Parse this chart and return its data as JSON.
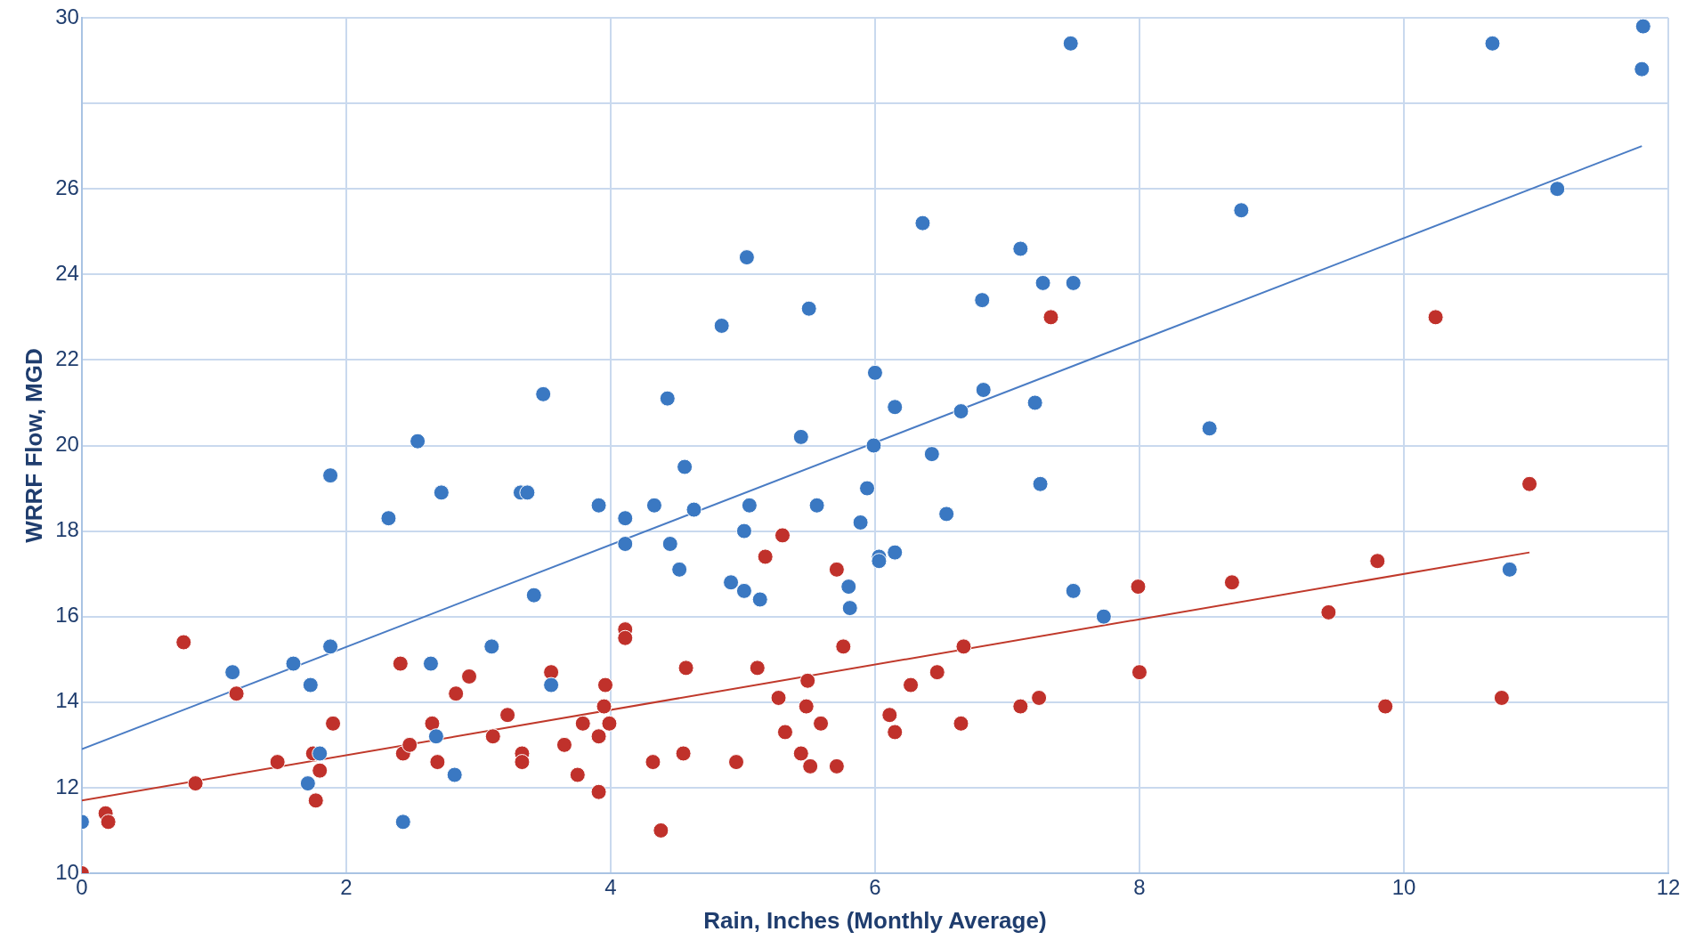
{
  "chart_data": {
    "type": "scatter",
    "xlabel": "Rain, Inches (Monthly Average)",
    "ylabel": "WRRF Flow, MGD",
    "xlim": [
      0,
      12
    ],
    "ylim": [
      10,
      30
    ],
    "xticks": [
      0,
      2,
      4,
      6,
      8,
      10,
      12
    ],
    "yticks": [
      10,
      12,
      14,
      16,
      18,
      20,
      22,
      24,
      26,
      {
        "value": 28,
        "label": null
      },
      30
    ],
    "grid": true,
    "marker": "circle",
    "series": [
      {
        "color": "#3a78c2",
        "x": [
          0,
          1.14,
          1.6,
          1.73,
          1.71,
          1.8,
          1.88,
          1.88,
          2.32,
          2.54,
          2.43,
          2.64,
          2.68,
          2.72,
          2.82,
          3.1,
          3.32,
          3.37,
          3.42,
          3.49,
          3.55,
          3.91,
          4.11,
          4.11,
          4.33,
          4.43,
          4.45,
          4.52,
          4.56,
          4.63,
          4.84,
          4.91,
          5.01,
          5.01,
          5.03,
          5.05,
          5.13,
          5.44,
          5.5,
          5.56,
          5.8,
          5.81,
          5.89,
          5.94,
          5.99,
          6.0,
          6.03,
          6.03,
          6.15,
          6.15,
          6.36,
          6.43,
          6.54,
          6.65,
          6.81,
          6.82,
          7.1,
          7.21,
          7.25,
          7.27,
          7.48,
          7.5,
          7.5,
          7.73,
          8.53,
          8.77,
          10.67,
          10.8,
          11.16,
          11.8,
          11.81
        ],
        "values": [
          11.2,
          14.7,
          14.9,
          14.4,
          12.1,
          12.8,
          15.3,
          19.3,
          18.3,
          20.1,
          11.2,
          14.9,
          13.2,
          18.9,
          12.3,
          15.3,
          18.9,
          18.9,
          16.5,
          21.2,
          14.4,
          18.6,
          18.3,
          17.7,
          18.6,
          21.1,
          17.7,
          17.1,
          19.5,
          18.5,
          22.8,
          16.8,
          18.0,
          16.6,
          24.4,
          18.6,
          16.4,
          20.2,
          23.2,
          18.6,
          16.7,
          16.2,
          18.2,
          19.0,
          20.0,
          21.7,
          17.4,
          17.3,
          20.9,
          17.5,
          25.2,
          19.8,
          18.4,
          20.8,
          23.4,
          21.3,
          24.6,
          21.0,
          19.1,
          23.8,
          29.4,
          23.8,
          16.6,
          16.0,
          20.4,
          25.5,
          29.4,
          17.1,
          26.0,
          28.8,
          29.8
        ]
      },
      {
        "color": "#c0312b",
        "x": [
          0,
          0.18,
          0.2,
          0.77,
          0.86,
          1.17,
          1.48,
          1.75,
          1.8,
          1.77,
          1.9,
          2.41,
          2.43,
          2.48,
          2.65,
          2.69,
          2.83,
          2.93,
          3.11,
          3.22,
          3.33,
          3.33,
          3.55,
          3.65,
          3.75,
          3.79,
          3.91,
          3.91,
          3.95,
          3.96,
          3.99,
          4.11,
          4.11,
          4.32,
          4.38,
          4.55,
          4.57,
          4.95,
          5.11,
          5.17,
          5.27,
          5.3,
          5.32,
          5.44,
          5.48,
          5.49,
          5.51,
          5.59,
          5.71,
          5.71,
          5.76,
          6.11,
          6.15,
          6.27,
          6.47,
          6.65,
          6.67,
          7.1,
          7.24,
          7.33,
          7.99,
          8.0,
          8.7,
          9.43,
          9.8,
          9.86,
          10.24,
          10.74,
          10.95
        ],
        "values": [
          10.0,
          11.4,
          11.2,
          15.4,
          12.1,
          14.2,
          12.6,
          12.8,
          12.4,
          11.7,
          13.5,
          14.9,
          12.8,
          13.0,
          13.5,
          12.6,
          14.2,
          14.6,
          13.2,
          13.7,
          12.8,
          12.6,
          14.7,
          13.0,
          12.3,
          13.5,
          11.9,
          13.2,
          13.9,
          14.4,
          13.5,
          15.7,
          15.5,
          12.6,
          11.0,
          12.8,
          14.8,
          12.6,
          14.8,
          17.4,
          14.1,
          17.9,
          13.3,
          12.8,
          13.9,
          14.5,
          12.5,
          13.5,
          12.5,
          17.1,
          15.3,
          13.7,
          13.3,
          14.4,
          14.7,
          13.5,
          15.3,
          13.9,
          14.1,
          23.0,
          16.7,
          14.7,
          16.8,
          16.1,
          17.3,
          13.9,
          23.0,
          14.1,
          19.1
        ]
      },
      {
        "type": "line",
        "marker": "none",
        "color": "#4a7cc4",
        "x": [
          0,
          11.8
        ],
        "values": [
          12.9,
          27.0
        ]
      },
      {
        "type": "line",
        "marker": "none",
        "color": "#c0392b",
        "x": [
          0,
          10.95
        ],
        "values": [
          11.7,
          17.5
        ]
      }
    ]
  }
}
